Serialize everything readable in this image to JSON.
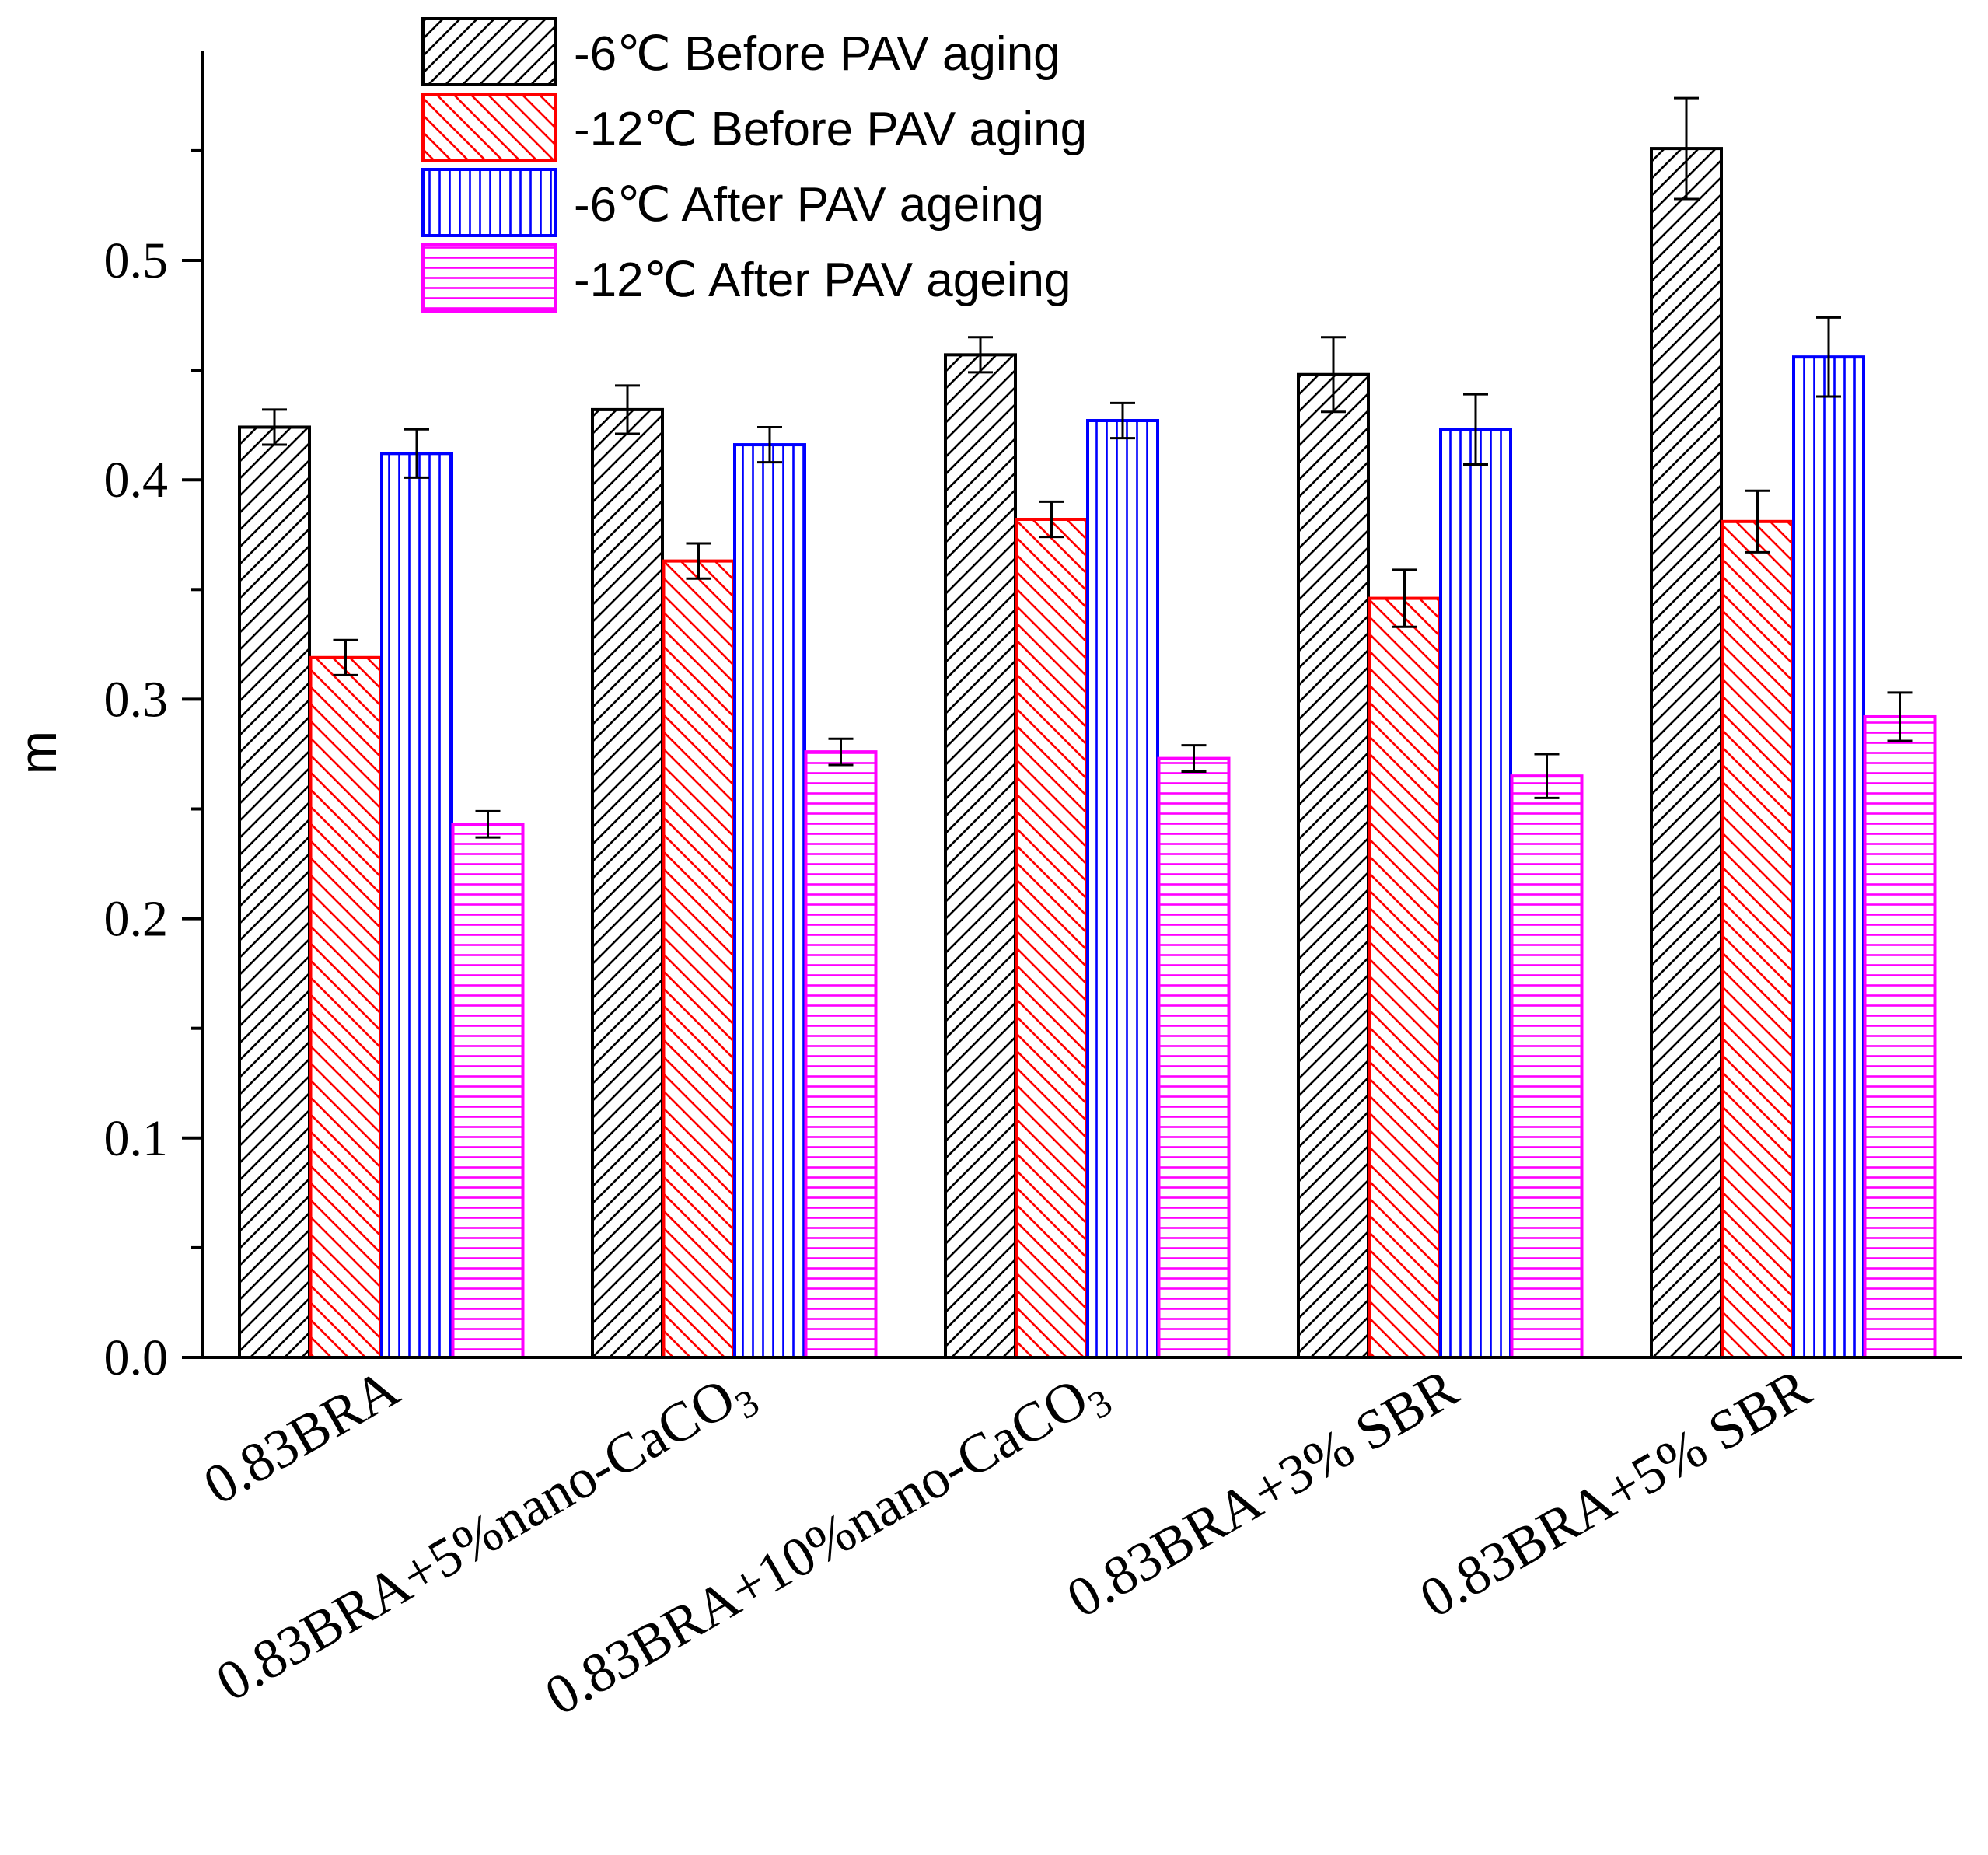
{
  "chart_data": {
    "type": "bar",
    "title": "",
    "xlabel": "",
    "ylabel": "m",
    "ylim": [
      0.0,
      0.6
    ],
    "yticks": [
      "0.0",
      "0.1",
      "0.2",
      "0.3",
      "0.4",
      "0.5"
    ],
    "grid": false,
    "legend_position": "top-center",
    "categories": [
      "0.83BRA",
      "0.83BRA+5%nano-CaCO3",
      "0.83BRA+10%nano-CaCO3",
      "0.83BRA+3% SBR",
      "0.83BRA+5% SBR"
    ],
    "category_labels": [
      {
        "main": "0.83BRA",
        "sub": ""
      },
      {
        "main": "0.83BRA+5%nano-CaCO",
        "sub": "3"
      },
      {
        "main": "0.83BRA+10%nano-CaCO",
        "sub": "3"
      },
      {
        "main": "0.83BRA+3% SBR",
        "sub": ""
      },
      {
        "main": "0.83BRA+5% SBR",
        "sub": ""
      }
    ],
    "series": [
      {
        "name": "-6℃ Before PAV aging",
        "color": "#000000",
        "pattern": "diag-up",
        "values": [
          0.424,
          0.432,
          0.457,
          0.448,
          0.551
        ],
        "errors": [
          0.008,
          0.011,
          0.008,
          0.017,
          0.023
        ]
      },
      {
        "name": "-12℃ Before PAV aging",
        "color": "#ff0000",
        "pattern": "diag-down",
        "values": [
          0.319,
          0.363,
          0.382,
          0.346,
          0.381
        ],
        "errors": [
          0.008,
          0.008,
          0.008,
          0.013,
          0.014
        ]
      },
      {
        "name": "-6℃   After PAV ageing",
        "color": "#0000ff",
        "pattern": "vertical",
        "values": [
          0.412,
          0.416,
          0.427,
          0.423,
          0.456
        ],
        "errors": [
          0.011,
          0.008,
          0.008,
          0.016,
          0.018
        ]
      },
      {
        "name": "-12℃ After PAV ageing",
        "color": "#ff00ff",
        "pattern": "horizontal",
        "values": [
          0.243,
          0.276,
          0.273,
          0.265,
          0.292
        ],
        "errors": [
          0.006,
          0.006,
          0.006,
          0.01,
          0.011
        ]
      }
    ]
  }
}
